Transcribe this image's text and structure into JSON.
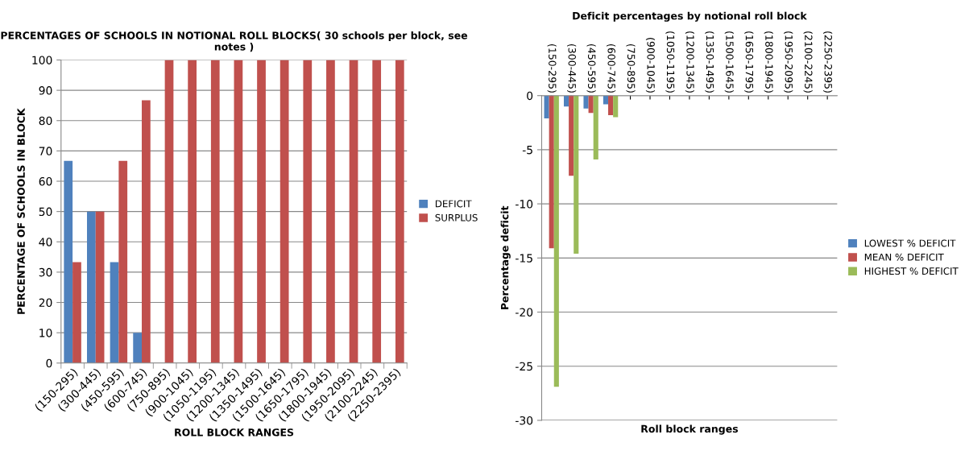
{
  "chart_data": [
    {
      "type": "bar",
      "title": "PERCENTAGES OF SCHOOLS IN NOTIONAL ROLL BLOCKS( 30 schools per block, see notes )",
      "xlabel": "ROLL BLOCK RANGES",
      "ylabel": "PERCENTAGE OF SCHOOLS IN BLOCK",
      "categories": [
        "(150-295)",
        "(300-445)",
        "(450-595)",
        "(600-745)",
        "(750-895)",
        "(900-1045)",
        "(1050-1195)",
        "(1200-1345)",
        "(1350-1495)",
        "(1500-1645)",
        "(1650-1795)",
        "(1800-1945)",
        "(1950-2095)",
        "(2100-2245)",
        "(2250-2395)"
      ],
      "series": [
        {
          "name": "DEFICIT",
          "color": "#4f81bd",
          "values": [
            66.7,
            50,
            33.3,
            10,
            0,
            0,
            0,
            0,
            0,
            0,
            0,
            0,
            0,
            0,
            0
          ]
        },
        {
          "name": "SURPLUS",
          "color": "#c0504d",
          "values": [
            33.3,
            50,
            66.7,
            86.7,
            100,
            100,
            100,
            100,
            100,
            100,
            100,
            100,
            100,
            100,
            100
          ]
        }
      ],
      "ylim": [
        0,
        100
      ],
      "yticks": [
        0,
        10,
        20,
        30,
        40,
        50,
        60,
        70,
        80,
        90,
        100
      ],
      "grid": "y",
      "legend": "right"
    },
    {
      "type": "bar",
      "title": "Deficit percentages by notional roll block",
      "xlabel": "Roll block ranges",
      "ylabel": "Percentage deficit",
      "categories": [
        "(150-295)",
        "(300-445)",
        "(450-595)",
        "(600-745)",
        "(750-895)",
        "(900-1045)",
        "(1050-1195)",
        "(1200-1345)",
        "(1350-1495)",
        "(1500-1645)",
        "(1650-1795)",
        "(1800-1945)",
        "(1950-2095)",
        "(2100-2245)",
        "(2250-2395)"
      ],
      "series": [
        {
          "name": "LOWEST % DEFICIT",
          "color": "#4f81bd",
          "values": [
            -2.1,
            -1.0,
            -1.2,
            -0.8,
            0,
            0,
            0,
            0,
            0,
            0,
            0,
            0,
            0,
            0,
            0
          ]
        },
        {
          "name": "MEAN % DEFICIT",
          "color": "#c0504d",
          "values": [
            -14.1,
            -7.4,
            -1.6,
            -1.8,
            0,
            0,
            0,
            0,
            0,
            0,
            0,
            0,
            0,
            0,
            0
          ]
        },
        {
          "name": "HIGHEST % DEFICIT",
          "color": "#9bbb59",
          "values": [
            -26.9,
            -14.6,
            -5.9,
            -2.0,
            0,
            0,
            0,
            0,
            0,
            0,
            0,
            0,
            0,
            0,
            0
          ]
        }
      ],
      "ylim": [
        -30,
        0
      ],
      "yticks": [
        -30,
        -25,
        -20,
        -15,
        -10,
        -5,
        0
      ],
      "grid": "y",
      "legend": "right"
    }
  ]
}
